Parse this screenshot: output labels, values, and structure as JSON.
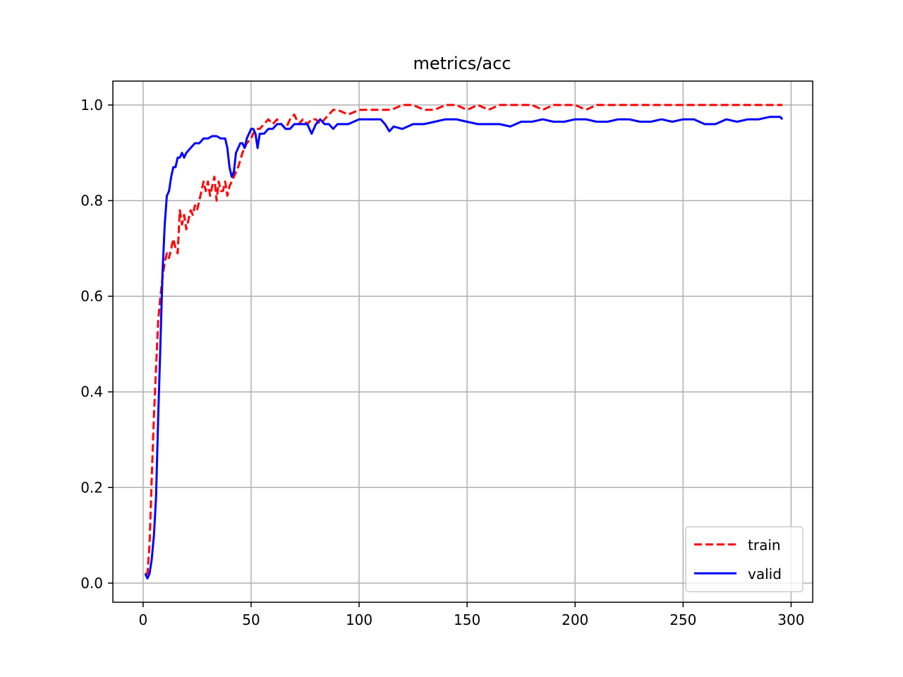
{
  "chart_data": {
    "type": "line",
    "title": "metrics/acc",
    "xlabel": "",
    "ylabel": "",
    "xlim": [
      -14,
      310
    ],
    "ylim": [
      -0.04,
      1.05
    ],
    "xticks": [
      0,
      50,
      100,
      150,
      200,
      250,
      300
    ],
    "yticks": [
      0.0,
      0.2,
      0.4,
      0.6,
      0.8,
      1.0
    ],
    "xtick_labels": [
      "0",
      "50",
      "100",
      "150",
      "200",
      "250",
      "300"
    ],
    "ytick_labels": [
      "0.0",
      "0.2",
      "0.4",
      "0.6",
      "0.8",
      "1.0"
    ],
    "grid": true,
    "legend_position": "lower-right",
    "series": [
      {
        "name": "train",
        "color": "#ff0000",
        "style": "dashed",
        "x": [
          1,
          2,
          3,
          4,
          5,
          6,
          7,
          8,
          9,
          10,
          11,
          12,
          13,
          14,
          15,
          16,
          17,
          18,
          19,
          20,
          21,
          22,
          23,
          24,
          25,
          26,
          27,
          28,
          29,
          30,
          31,
          32,
          33,
          34,
          35,
          36,
          37,
          38,
          39,
          40,
          42,
          44,
          46,
          48,
          50,
          52,
          54,
          56,
          58,
          60,
          62,
          64,
          66,
          68,
          70,
          72,
          74,
          76,
          78,
          80,
          82,
          84,
          86,
          88,
          90,
          95,
          100,
          105,
          110,
          115,
          120,
          125,
          130,
          135,
          140,
          145,
          150,
          155,
          160,
          165,
          170,
          175,
          180,
          185,
          190,
          195,
          200,
          205,
          210,
          215,
          220,
          225,
          230,
          235,
          240,
          245,
          250,
          255,
          260,
          265,
          270,
          275,
          280,
          285,
          290,
          296
        ],
        "y": [
          0.02,
          0.02,
          0.08,
          0.22,
          0.35,
          0.45,
          0.55,
          0.6,
          0.64,
          0.67,
          0.69,
          0.68,
          0.7,
          0.72,
          0.7,
          0.69,
          0.78,
          0.75,
          0.77,
          0.74,
          0.76,
          0.78,
          0.77,
          0.79,
          0.78,
          0.8,
          0.82,
          0.84,
          0.82,
          0.84,
          0.81,
          0.83,
          0.85,
          0.8,
          0.84,
          0.82,
          0.82,
          0.84,
          0.81,
          0.83,
          0.85,
          0.87,
          0.9,
          0.92,
          0.93,
          0.95,
          0.95,
          0.96,
          0.97,
          0.96,
          0.97,
          0.96,
          0.95,
          0.97,
          0.98,
          0.96,
          0.97,
          0.96,
          0.97,
          0.97,
          0.96,
          0.97,
          0.98,
          0.99,
          0.99,
          0.98,
          0.99,
          0.99,
          0.99,
          0.99,
          1.0,
          1.0,
          0.99,
          0.99,
          1.0,
          1.0,
          0.99,
          1.0,
          0.99,
          1.0,
          1.0,
          1.0,
          1.0,
          0.99,
          1.0,
          1.0,
          1.0,
          0.99,
          1.0,
          1.0,
          1.0,
          1.0,
          1.0,
          1.0,
          1.0,
          1.0,
          1.0,
          1.0,
          1.0,
          1.0,
          1.0,
          1.0,
          1.0,
          1.0,
          1.0,
          1.0
        ]
      },
      {
        "name": "valid",
        "color": "#0000ff",
        "style": "solid",
        "x": [
          1,
          2,
          3,
          4,
          5,
          6,
          7,
          8,
          9,
          10,
          11,
          12,
          13,
          14,
          15,
          16,
          17,
          18,
          19,
          20,
          22,
          24,
          26,
          28,
          30,
          32,
          34,
          36,
          38,
          39,
          40,
          41,
          42,
          43,
          44,
          45,
          46,
          47,
          48,
          49,
          50,
          51,
          52,
          53,
          54,
          56,
          58,
          60,
          62,
          64,
          66,
          68,
          70,
          72,
          74,
          76,
          78,
          80,
          82,
          84,
          86,
          88,
          90,
          95,
          100,
          105,
          110,
          112,
          114,
          116,
          120,
          125,
          130,
          135,
          140,
          145,
          150,
          155,
          160,
          165,
          170,
          175,
          180,
          185,
          190,
          195,
          200,
          205,
          210,
          215,
          220,
          225,
          230,
          235,
          240,
          245,
          250,
          255,
          260,
          265,
          270,
          275,
          280,
          285,
          290,
          295,
          296
        ],
        "y": [
          0.02,
          0.01,
          0.02,
          0.05,
          0.1,
          0.18,
          0.35,
          0.5,
          0.65,
          0.75,
          0.81,
          0.82,
          0.85,
          0.87,
          0.87,
          0.89,
          0.89,
          0.9,
          0.89,
          0.9,
          0.91,
          0.92,
          0.92,
          0.93,
          0.93,
          0.935,
          0.935,
          0.93,
          0.93,
          0.91,
          0.87,
          0.85,
          0.86,
          0.9,
          0.91,
          0.92,
          0.92,
          0.91,
          0.93,
          0.94,
          0.95,
          0.95,
          0.94,
          0.91,
          0.94,
          0.94,
          0.95,
          0.95,
          0.96,
          0.96,
          0.95,
          0.95,
          0.96,
          0.96,
          0.96,
          0.96,
          0.94,
          0.96,
          0.97,
          0.96,
          0.96,
          0.95,
          0.96,
          0.96,
          0.97,
          0.97,
          0.97,
          0.96,
          0.945,
          0.955,
          0.95,
          0.96,
          0.96,
          0.965,
          0.97,
          0.97,
          0.965,
          0.96,
          0.96,
          0.96,
          0.955,
          0.965,
          0.965,
          0.97,
          0.965,
          0.965,
          0.97,
          0.97,
          0.965,
          0.965,
          0.97,
          0.97,
          0.965,
          0.965,
          0.97,
          0.965,
          0.97,
          0.97,
          0.96,
          0.96,
          0.97,
          0.965,
          0.97,
          0.97,
          0.975,
          0.975,
          0.97
        ]
      }
    ]
  }
}
